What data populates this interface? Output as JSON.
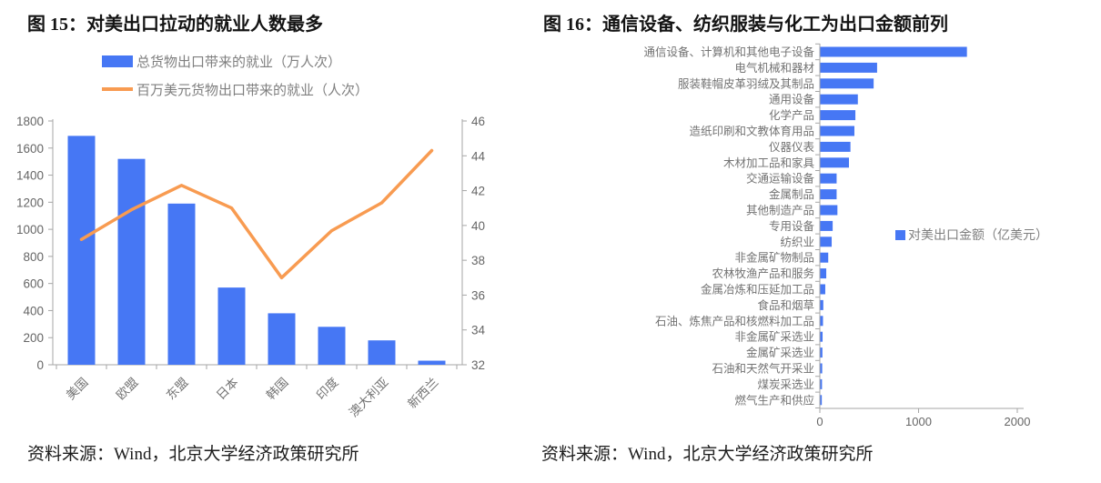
{
  "page": {
    "background": "#ffffff"
  },
  "colors": {
    "bar_blue": "#4677f4",
    "line_orange": "#f89b51",
    "axis_line": "#a6a6a6",
    "tick_label": "#666666",
    "category_label": "#737373",
    "legend_text": "#7f7f7f"
  },
  "figures": [
    {
      "title": "图 15：对美出口拉动的就业人数最多",
      "source": "资料来源：Wind，北京大学经济政策研究所"
    },
    {
      "title": "图 16：通信设备、纺织服装与化工为出口金额前列",
      "source": "资料来源：Wind，北京大学经济政策研究所"
    }
  ],
  "chart_data": [
    {
      "type": "bar",
      "subtype": "vertical-bar-with-line",
      "title": "图 15：对美出口拉动的就业人数最多",
      "categories": [
        "美国",
        "欧盟",
        "东盟",
        "日本",
        "韩国",
        "印度",
        "澳大利亚",
        "新西兰"
      ],
      "series": [
        {
          "name": "总货物出口带来的就业（万人次）",
          "type": "bar",
          "axis": "left",
          "color": "#4677f4",
          "values": [
            1690,
            1520,
            1190,
            570,
            380,
            280,
            180,
            30
          ]
        },
        {
          "name": "百万美元货物出口带来的就业（人次）",
          "type": "line",
          "axis": "right",
          "color": "#f89b51",
          "values": [
            39.2,
            40.9,
            42.3,
            41.0,
            37.0,
            39.7,
            41.3,
            44.3
          ]
        }
      ],
      "left_axis": {
        "min": 0,
        "max": 1800,
        "step": 200
      },
      "right_axis": {
        "min": 32,
        "max": 46,
        "step": 2
      },
      "legend_position": "top-left",
      "grid": false
    },
    {
      "type": "bar",
      "subtype": "horizontal-bar",
      "title": "图 16：通信设备、纺织服装与化工为出口金额前列",
      "categories": [
        "通信设备、计算机和其他电子设备",
        "电气机械和器材",
        "服装鞋帽皮革羽绒及其制品",
        "通用设备",
        "化学产品",
        "造纸印刷和文教体育用品",
        "仪器仪表",
        "木材加工品和家具",
        "交通运输设备",
        "金属制品",
        "其他制造产品",
        "专用设备",
        "纺织业",
        "非金属矿物制品",
        "农林牧渔产品和服务",
        "金属冶炼和压延加工品",
        "食品和烟草",
        "石油、炼焦产品和核燃料加工品",
        "非金属矿采选业",
        "金属矿采选业",
        "石油和天然气开采业",
        "煤炭采选业",
        "燃气生产和供应"
      ],
      "series": [
        {
          "name": "对美出口金额（亿美元）",
          "type": "bar",
          "color": "#4677f4",
          "values": [
            1490,
            580,
            545,
            385,
            360,
            350,
            310,
            295,
            170,
            170,
            178,
            130,
            120,
            85,
            65,
            55,
            35,
            32,
            28,
            26,
            24,
            22,
            20
          ]
        }
      ],
      "x_axis": {
        "min": 0,
        "max": 2000,
        "ticks": [
          0,
          1000,
          2000
        ]
      },
      "legend_position": "middle-right",
      "grid": false
    }
  ]
}
